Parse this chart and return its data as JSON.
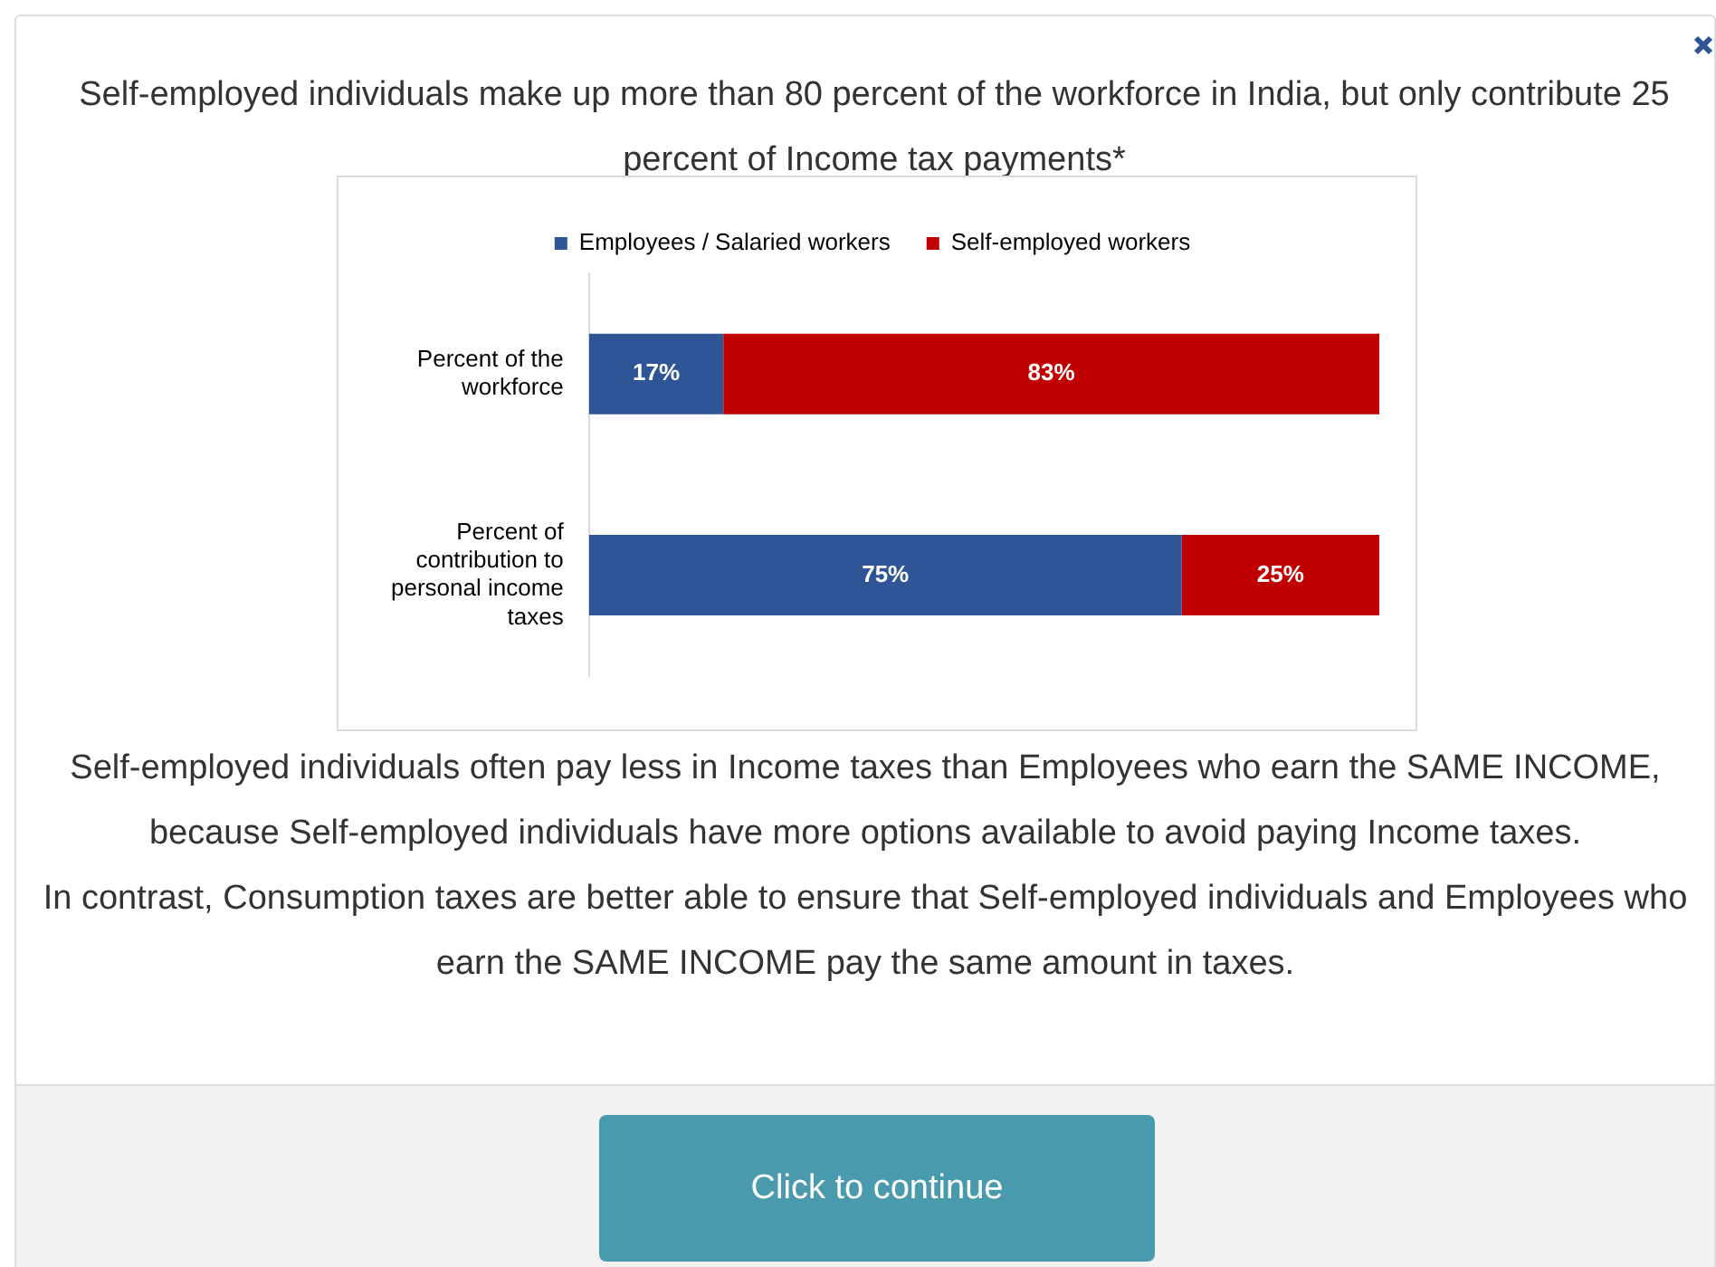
{
  "chart_data": {
    "type": "bar",
    "orientation": "horizontal",
    "stacked": true,
    "title": "Self-employed individuals make up more than 80 percent of the workforce in India, but only contribute 25 percent of Income tax payments*",
    "categories": [
      "Percent of the workforce",
      "Percent of contribution to personal income taxes"
    ],
    "series": [
      {
        "name": "Employees / Salaried workers",
        "color": "#2f5597",
        "values": [
          17,
          75
        ],
        "value_labels": [
          "17%",
          "75%"
        ]
      },
      {
        "name": "Self-employed workers",
        "color": "#c00000",
        "values": [
          83,
          25
        ],
        "value_labels": [
          "83%",
          "25%"
        ]
      }
    ],
    "xlim": [
      0,
      100
    ],
    "tick_labels": "y",
    "grid": false,
    "legend": "top",
    "annotations": [
      "Self-employed individuals often pay less in Income taxes than Employees who earn the SAME INCOME, because Self-employed individuals have more options available to avoid paying Income taxes.",
      "In contrast, Consumption taxes are better able to ensure that Self-employed individuals and Employees who earn the SAME INCOME pay the same amount in taxes.",
      "Click to continue"
    ]
  }
}
